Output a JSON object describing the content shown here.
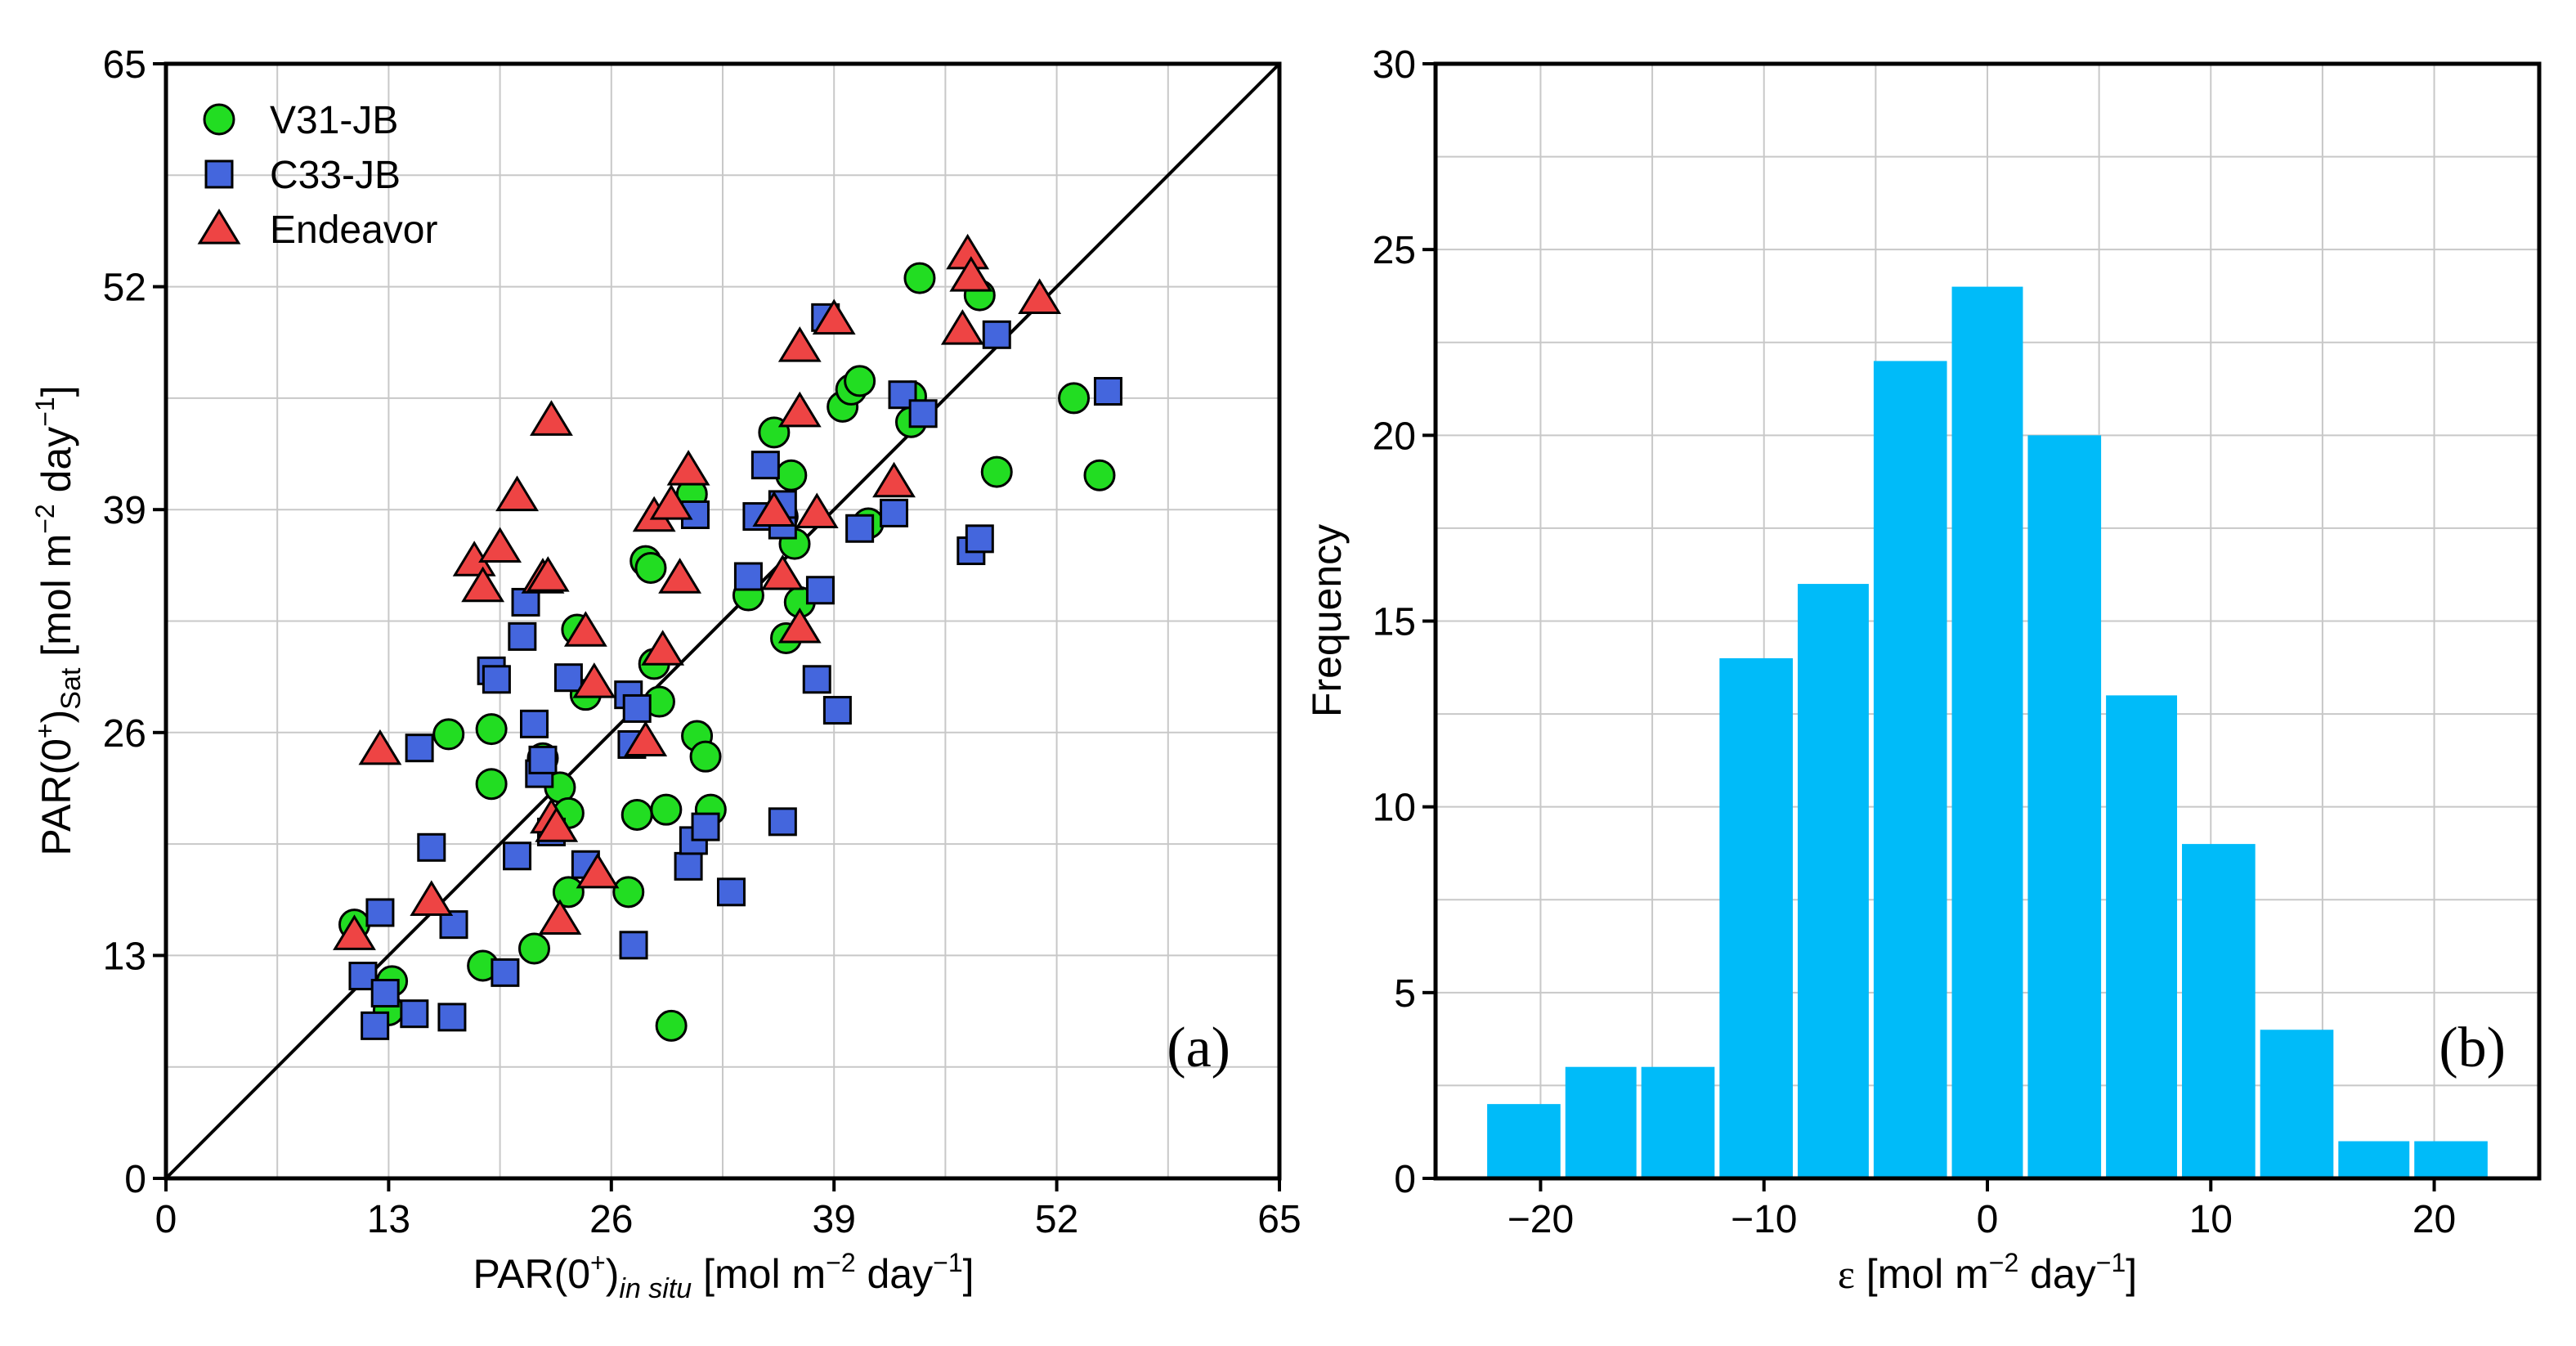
{
  "chart_data": [
    {
      "type": "scatter",
      "panel_label": "(a)",
      "xlabel": {
        "main": "PAR(0",
        "sup": "+",
        "close": ")",
        "sub": "in situ",
        "unit_pre": " [mol m",
        "unit_sup1": "−2",
        "unit_mid": " day",
        "unit_sup2": "−1",
        "unit_post": "]"
      },
      "ylabel": {
        "main": "PAR(0",
        "sup": "+",
        "close": ")",
        "sub": "Sat",
        "unit_pre": " [mol m",
        "unit_sup1": "−2",
        "unit_mid": " day",
        "unit_sup2": "−1",
        "unit_post": "]"
      },
      "xlim": [
        0,
        65
      ],
      "ylim": [
        0,
        65
      ],
      "xticks": [
        0,
        13,
        26,
        39,
        52,
        65
      ],
      "yticks": [
        0,
        13,
        26,
        39,
        52,
        65
      ],
      "grid": true,
      "one_to_one_line": true,
      "legend_position": "top-left",
      "series": [
        {
          "name": "V31-JB",
          "marker": "circle",
          "color": "#22dd22",
          "points": [
            [
              11.0,
              14.8
            ],
            [
              13.2,
              11.5
            ],
            [
              13.0,
              9.8
            ],
            [
              16.5,
              25.9
            ],
            [
              18.5,
              12.4
            ],
            [
              19.0,
              26.2
            ],
            [
              19.0,
              23.0
            ],
            [
              21.5,
              13.4
            ],
            [
              22.0,
              24.5
            ],
            [
              23.0,
              22.8
            ],
            [
              23.5,
              21.3
            ],
            [
              23.5,
              16.7
            ],
            [
              24.0,
              32.0
            ],
            [
              24.5,
              28.2
            ],
            [
              27.0,
              16.7
            ],
            [
              27.5,
              21.2
            ],
            [
              28.0,
              36.0
            ],
            [
              28.3,
              35.6
            ],
            [
              28.5,
              30.0
            ],
            [
              28.8,
              27.8
            ],
            [
              29.2,
              21.5
            ],
            [
              29.5,
              8.9
            ],
            [
              30.7,
              39.9
            ],
            [
              31.0,
              25.8
            ],
            [
              31.5,
              24.6
            ],
            [
              31.8,
              21.5
            ],
            [
              34.0,
              34.0
            ],
            [
              35.5,
              43.5
            ],
            [
              36.0,
              38.6
            ],
            [
              36.2,
              31.5
            ],
            [
              36.5,
              41.0
            ],
            [
              36.7,
              37.0
            ],
            [
              37.0,
              33.6
            ],
            [
              39.5,
              45.0
            ],
            [
              40.0,
              46.0
            ],
            [
              40.5,
              46.5
            ],
            [
              41.0,
              38.2
            ],
            [
              43.5,
              45.6
            ],
            [
              43.5,
              44.1
            ],
            [
              44.0,
              52.5
            ],
            [
              47.5,
              51.5
            ],
            [
              48.5,
              41.2
            ],
            [
              53.0,
              45.5
            ],
            [
              54.5,
              41.0
            ]
          ]
        },
        {
          "name": "C33-JB",
          "marker": "square",
          "color": "#4466dd",
          "points": [
            [
              11.5,
              11.8
            ],
            [
              12.2,
              8.9
            ],
            [
              12.5,
              15.5
            ],
            [
              12.8,
              10.8
            ],
            [
              14.5,
              9.6
            ],
            [
              14.8,
              25.1
            ],
            [
              15.5,
              19.3
            ],
            [
              16.7,
              9.4
            ],
            [
              16.8,
              14.8
            ],
            [
              19.0,
              29.6
            ],
            [
              19.3,
              29.1
            ],
            [
              19.8,
              12.0
            ],
            [
              20.5,
              18.8
            ],
            [
              20.8,
              31.6
            ],
            [
              21.0,
              33.6
            ],
            [
              21.5,
              26.5
            ],
            [
              21.8,
              23.6
            ],
            [
              22.0,
              24.4
            ],
            [
              22.5,
              20.2
            ],
            [
              23.5,
              29.2
            ],
            [
              24.5,
              18.3
            ],
            [
              27.0,
              28.2
            ],
            [
              27.2,
              25.3
            ],
            [
              27.3,
              13.6
            ],
            [
              27.5,
              27.4
            ],
            [
              30.5,
              18.2
            ],
            [
              30.8,
              19.7
            ],
            [
              30.9,
              38.7
            ],
            [
              31.5,
              20.5
            ],
            [
              33.0,
              16.7
            ],
            [
              34.0,
              35.1
            ],
            [
              34.5,
              38.6
            ],
            [
              35.0,
              41.6
            ],
            [
              36.0,
              38.1
            ],
            [
              36.0,
              39.3
            ],
            [
              36.0,
              20.8
            ],
            [
              38.0,
              29.1
            ],
            [
              38.2,
              34.3
            ],
            [
              38.5,
              50.2
            ],
            [
              39.2,
              27.3
            ],
            [
              40.5,
              37.9
            ],
            [
              42.5,
              38.8
            ],
            [
              43.0,
              45.7
            ],
            [
              44.2,
              44.6
            ],
            [
              47.0,
              36.6
            ],
            [
              47.5,
              37.3
            ],
            [
              48.5,
              49.2
            ],
            [
              55.0,
              45.9
            ]
          ]
        },
        {
          "name": "Endeavor",
          "marker": "triangle",
          "color": "#ee4444",
          "points": [
            [
              11.0,
              14.2
            ],
            [
              12.5,
              25.0
            ],
            [
              15.5,
              16.2
            ],
            [
              18.0,
              36.0
            ],
            [
              18.5,
              34.5
            ],
            [
              19.5,
              36.8
            ],
            [
              20.5,
              39.8
            ],
            [
              22.0,
              35.0
            ],
            [
              22.3,
              35.1
            ],
            [
              22.5,
              44.2
            ],
            [
              22.5,
              21.0
            ],
            [
              22.8,
              20.5
            ],
            [
              23.0,
              15.1
            ],
            [
              24.5,
              31.9
            ],
            [
              25.0,
              28.9
            ],
            [
              25.2,
              17.8
            ],
            [
              28.0,
              25.5
            ],
            [
              28.5,
              38.6
            ],
            [
              29.0,
              30.8
            ],
            [
              29.5,
              39.3
            ],
            [
              30.0,
              35.0
            ],
            [
              30.5,
              41.3
            ],
            [
              35.5,
              38.9
            ],
            [
              36.0,
              35.2
            ],
            [
              37.0,
              44.7
            ],
            [
              37.0,
              48.5
            ],
            [
              37.0,
              32.1
            ],
            [
              38.0,
              38.8
            ],
            [
              39.0,
              50.1
            ],
            [
              42.5,
              40.6
            ],
            [
              46.5,
              49.5
            ],
            [
              46.8,
              53.9
            ],
            [
              47.0,
              52.6
            ],
            [
              51.0,
              51.3
            ]
          ]
        }
      ]
    },
    {
      "type": "histogram",
      "panel_label": "(b)",
      "xlabel": {
        "symbol": "ε",
        "unit_pre": " [mol m",
        "unit_sup1": "−2",
        "unit_mid": " day",
        "unit_sup2": "−1",
        "unit_post": "]"
      },
      "ylabel": "Frequency",
      "color": "#00bbf9",
      "xlim": [
        -24.7,
        24.7
      ],
      "ylim": [
        0,
        30
      ],
      "xticks": [
        -20,
        -10,
        0,
        10,
        20
      ],
      "xtick_labels": [
        "−20",
        "−10",
        "0",
        "10",
        "20"
      ],
      "yticks": [
        0,
        5,
        10,
        15,
        20,
        25,
        30
      ],
      "grid": true,
      "bin_edges": [
        -22.5,
        -19.0,
        -15.6,
        -12.1,
        -8.6,
        -5.2,
        -1.7,
        1.7,
        5.2,
        8.6,
        12.1,
        15.6,
        19.0,
        22.5
      ],
      "values": [
        2,
        3,
        3,
        14,
        16,
        22,
        24,
        20,
        13,
        9,
        4,
        1,
        1
      ]
    }
  ]
}
